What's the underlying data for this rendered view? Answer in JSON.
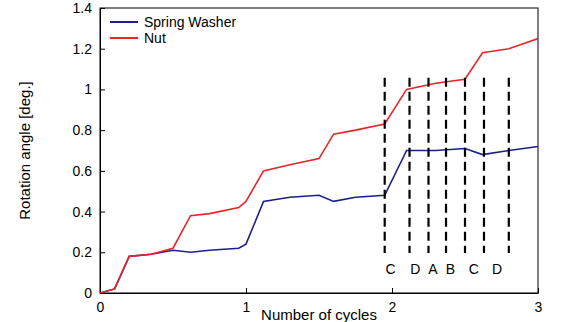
{
  "chart_data": {
    "type": "line",
    "x_label": "Number of cycles",
    "y_label": "Rotation angle [deg.]",
    "x": [
      0,
      0.1,
      0.2,
      0.35,
      0.5,
      0.62,
      0.75,
      0.95,
      1.0,
      1.12,
      1.3,
      1.5,
      1.6,
      1.75,
      1.95,
      2.1,
      2.3,
      2.5,
      2.62,
      2.8,
      3.0
    ],
    "series": [
      {
        "name": "Spring Washer",
        "color": "#1c1f8c",
        "values": [
          0,
          0.02,
          0.18,
          0.19,
          0.21,
          0.2,
          0.21,
          0.22,
          0.24,
          0.45,
          0.47,
          0.48,
          0.45,
          0.47,
          0.48,
          0.7,
          0.7,
          0.71,
          0.68,
          0.7,
          0.72
        ]
      },
      {
        "name": "Nut",
        "color": "#e8262a",
        "values": [
          0,
          0.02,
          0.18,
          0.19,
          0.22,
          0.38,
          0.39,
          0.42,
          0.45,
          0.6,
          0.63,
          0.66,
          0.78,
          0.8,
          0.83,
          1.0,
          1.03,
          1.05,
          1.18,
          1.2,
          1.25
        ]
      }
    ],
    "xlim": [
      0,
      3
    ],
    "xticks": [
      0,
      1,
      2,
      3
    ],
    "ylim": [
      0,
      1.4
    ],
    "yticks": [
      0,
      0.2,
      0.4,
      0.6,
      0.8,
      1,
      1.2,
      1.4
    ],
    "legend": "upper-left",
    "grid": false,
    "vlines": [
      1.95,
      2.12,
      2.25,
      2.37,
      2.5,
      2.63,
      2.8
    ],
    "annotations": [
      {
        "text": "C",
        "x": 1.99
      },
      {
        "text": "D",
        "x": 2.16
      },
      {
        "text": "A",
        "x": 2.28
      },
      {
        "text": "B",
        "x": 2.4
      },
      {
        "text": "C",
        "x": 2.56
      },
      {
        "text": "D",
        "x": 2.72
      }
    ]
  }
}
